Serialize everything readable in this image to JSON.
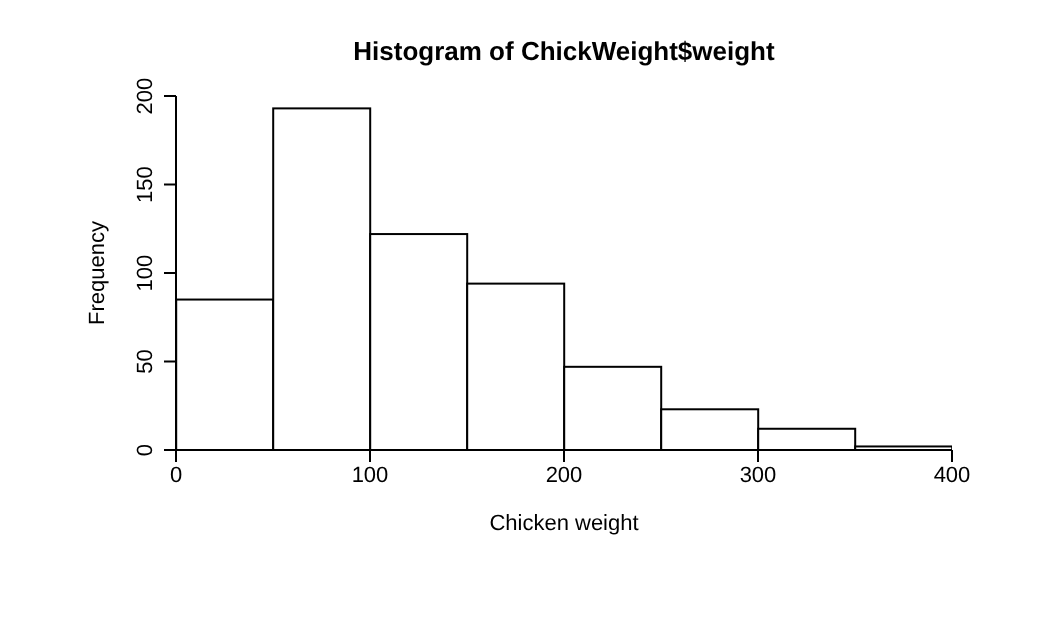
{
  "chart_data": {
    "type": "histogram",
    "title": "Histogram of ChickWeight$weight",
    "xlabel": "Chicken weight",
    "ylabel": "Frequency",
    "bins": [
      0,
      50,
      100,
      150,
      200,
      250,
      300,
      350,
      400
    ],
    "values": [
      85,
      193,
      122,
      94,
      47,
      23,
      12,
      2
    ],
    "color": "#ffffff",
    "xlim": [
      0,
      400
    ],
    "xticks": [
      0,
      100,
      200,
      300,
      400
    ],
    "ylim": [
      0,
      200
    ],
    "yticks": [
      0,
      50,
      100,
      150,
      200
    ],
    "grid": false
  }
}
